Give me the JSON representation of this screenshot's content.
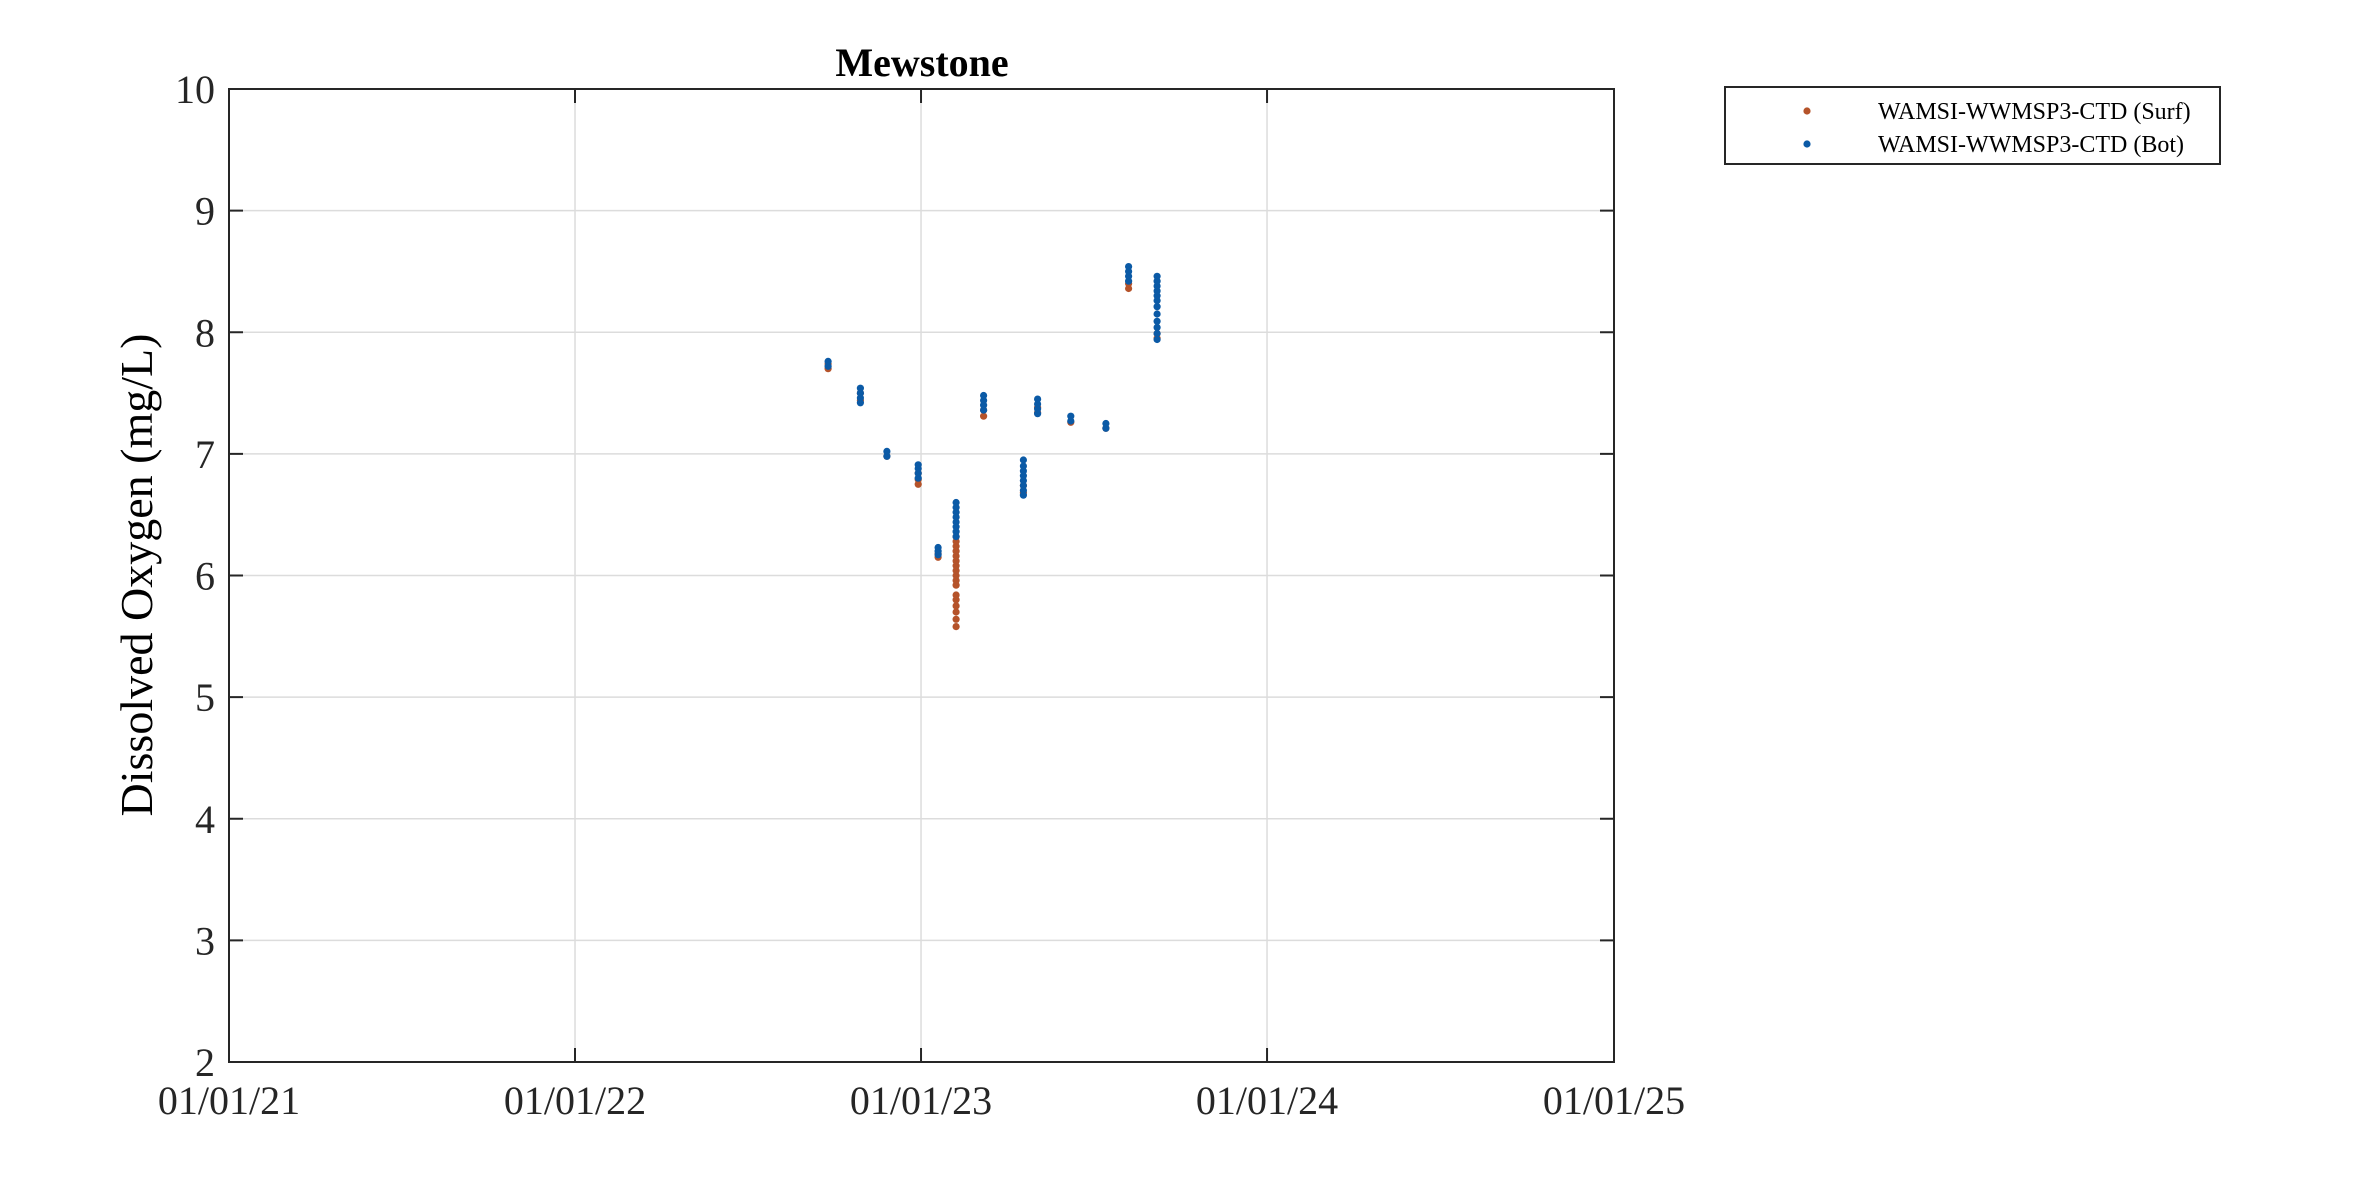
{
  "chart_data": {
    "type": "scatter",
    "title": "Mewstone",
    "xlabel": "",
    "ylabel": "Dissolved Oxygen (mg/L)",
    "xlim": [
      "2021-01-01",
      "2025-01-01"
    ],
    "ylim": [
      2,
      10
    ],
    "xticks": [
      {
        "date": "2021-01-01",
        "label": "01/01/21"
      },
      {
        "date": "2022-01-01",
        "label": "01/01/22"
      },
      {
        "date": "2023-01-01",
        "label": "01/01/23"
      },
      {
        "date": "2024-01-01",
        "label": "01/01/24"
      },
      {
        "date": "2025-01-01",
        "label": "01/01/25"
      }
    ],
    "yticks": [
      2,
      3,
      4,
      5,
      6,
      7,
      8,
      9,
      10
    ],
    "grid": true,
    "legend_position": "outside-top-right",
    "series": [
      {
        "name": "WAMSI-WWMSP3-CTD (Surf)",
        "color": "#b5532a",
        "points": [
          {
            "x": "2022-09-25",
            "y": 7.7
          },
          {
            "x": "2022-09-25",
            "y": 7.74
          },
          {
            "x": "2022-10-29",
            "y": 7.44
          },
          {
            "x": "2022-10-29",
            "y": 7.5
          },
          {
            "x": "2022-11-26",
            "y": 6.98
          },
          {
            "x": "2022-12-29",
            "y": 6.75
          },
          {
            "x": "2022-12-29",
            "y": 6.79
          },
          {
            "x": "2022-12-29",
            "y": 6.84
          },
          {
            "x": "2023-01-19",
            "y": 6.15
          },
          {
            "x": "2023-01-19",
            "y": 6.18
          },
          {
            "x": "2023-02-07",
            "y": 5.58
          },
          {
            "x": "2023-02-07",
            "y": 5.64
          },
          {
            "x": "2023-02-07",
            "y": 5.7
          },
          {
            "x": "2023-02-07",
            "y": 5.75
          },
          {
            "x": "2023-02-07",
            "y": 5.8
          },
          {
            "x": "2023-02-07",
            "y": 5.84
          },
          {
            "x": "2023-02-07",
            "y": 5.92
          },
          {
            "x": "2023-02-07",
            "y": 5.96
          },
          {
            "x": "2023-02-07",
            "y": 6.0
          },
          {
            "x": "2023-02-07",
            "y": 6.04
          },
          {
            "x": "2023-02-07",
            "y": 6.08
          },
          {
            "x": "2023-02-07",
            "y": 6.12
          },
          {
            "x": "2023-02-07",
            "y": 6.16
          },
          {
            "x": "2023-02-07",
            "y": 6.2
          },
          {
            "x": "2023-02-07",
            "y": 6.24
          },
          {
            "x": "2023-02-07",
            "y": 6.28
          },
          {
            "x": "2023-02-07",
            "y": 6.32
          },
          {
            "x": "2023-03-08",
            "y": 7.31
          },
          {
            "x": "2023-03-08",
            "y": 7.36
          },
          {
            "x": "2023-04-19",
            "y": 6.68
          },
          {
            "x": "2023-04-19",
            "y": 6.74
          },
          {
            "x": "2023-05-04",
            "y": 7.34
          },
          {
            "x": "2023-05-04",
            "y": 7.38
          },
          {
            "x": "2023-06-08",
            "y": 7.26
          },
          {
            "x": "2023-07-15",
            "y": 7.21
          },
          {
            "x": "2023-08-08",
            "y": 8.36
          },
          {
            "x": "2023-08-08",
            "y": 8.4
          },
          {
            "x": "2023-09-07",
            "y": 7.95
          },
          {
            "x": "2023-09-07",
            "y": 7.99
          }
        ]
      },
      {
        "name": "WAMSI-WWMSP3-CTD (Bot)",
        "color": "#0b5aa6",
        "points": [
          {
            "x": "2022-09-25",
            "y": 7.72
          },
          {
            "x": "2022-09-25",
            "y": 7.76
          },
          {
            "x": "2022-10-29",
            "y": 7.42
          },
          {
            "x": "2022-10-29",
            "y": 7.46
          },
          {
            "x": "2022-10-29",
            "y": 7.5
          },
          {
            "x": "2022-10-29",
            "y": 7.54
          },
          {
            "x": "2022-11-26",
            "y": 6.98
          },
          {
            "x": "2022-11-26",
            "y": 7.02
          },
          {
            "x": "2022-12-29",
            "y": 6.8
          },
          {
            "x": "2022-12-29",
            "y": 6.84
          },
          {
            "x": "2022-12-29",
            "y": 6.88
          },
          {
            "x": "2022-12-29",
            "y": 6.91
          },
          {
            "x": "2023-01-19",
            "y": 6.17
          },
          {
            "x": "2023-01-19",
            "y": 6.2
          },
          {
            "x": "2023-01-19",
            "y": 6.23
          },
          {
            "x": "2023-02-07",
            "y": 6.32
          },
          {
            "x": "2023-02-07",
            "y": 6.36
          },
          {
            "x": "2023-02-07",
            "y": 6.4
          },
          {
            "x": "2023-02-07",
            "y": 6.44
          },
          {
            "x": "2023-02-07",
            "y": 6.48
          },
          {
            "x": "2023-02-07",
            "y": 6.52
          },
          {
            "x": "2023-02-07",
            "y": 6.56
          },
          {
            "x": "2023-02-07",
            "y": 6.6
          },
          {
            "x": "2023-03-08",
            "y": 7.36
          },
          {
            "x": "2023-03-08",
            "y": 7.4
          },
          {
            "x": "2023-03-08",
            "y": 7.44
          },
          {
            "x": "2023-03-08",
            "y": 7.48
          },
          {
            "x": "2023-04-19",
            "y": 6.66
          },
          {
            "x": "2023-04-19",
            "y": 6.7
          },
          {
            "x": "2023-04-19",
            "y": 6.74
          },
          {
            "x": "2023-04-19",
            "y": 6.78
          },
          {
            "x": "2023-04-19",
            "y": 6.82
          },
          {
            "x": "2023-04-19",
            "y": 6.86
          },
          {
            "x": "2023-04-19",
            "y": 6.9
          },
          {
            "x": "2023-04-19",
            "y": 6.95
          },
          {
            "x": "2023-05-04",
            "y": 7.33
          },
          {
            "x": "2023-05-04",
            "y": 7.37
          },
          {
            "x": "2023-05-04",
            "y": 7.41
          },
          {
            "x": "2023-05-04",
            "y": 7.45
          },
          {
            "x": "2023-06-08",
            "y": 7.27
          },
          {
            "x": "2023-06-08",
            "y": 7.31
          },
          {
            "x": "2023-07-15",
            "y": 7.21
          },
          {
            "x": "2023-07-15",
            "y": 7.25
          },
          {
            "x": "2023-08-08",
            "y": 8.42
          },
          {
            "x": "2023-08-08",
            "y": 8.46
          },
          {
            "x": "2023-08-08",
            "y": 8.5
          },
          {
            "x": "2023-08-08",
            "y": 8.54
          },
          {
            "x": "2023-09-07",
            "y": 7.94
          },
          {
            "x": "2023-09-07",
            "y": 7.99
          },
          {
            "x": "2023-09-07",
            "y": 8.04
          },
          {
            "x": "2023-09-07",
            "y": 8.09
          },
          {
            "x": "2023-09-07",
            "y": 8.15
          },
          {
            "x": "2023-09-07",
            "y": 8.21
          },
          {
            "x": "2023-09-07",
            "y": 8.26
          },
          {
            "x": "2023-09-07",
            "y": 8.3
          },
          {
            "x": "2023-09-07",
            "y": 8.34
          },
          {
            "x": "2023-09-07",
            "y": 8.38
          },
          {
            "x": "2023-09-07",
            "y": 8.42
          },
          {
            "x": "2023-09-07",
            "y": 8.46
          }
        ]
      }
    ]
  }
}
